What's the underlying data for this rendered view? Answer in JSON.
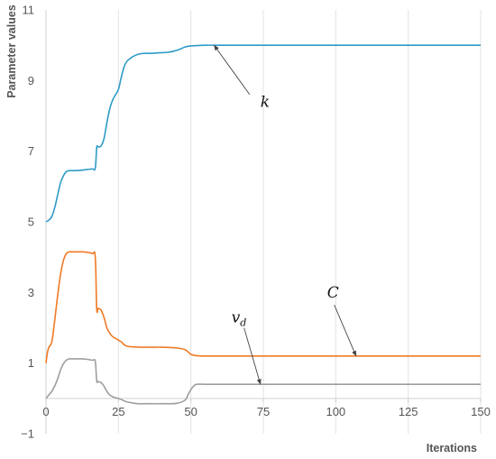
{
  "chart_data": {
    "type": "line",
    "xlabel": "Iterations",
    "ylabel": "Parameter values",
    "xlim": [
      0,
      150
    ],
    "ylim": [
      -1,
      11
    ],
    "x_ticks": [
      0,
      25,
      50,
      75,
      100,
      125,
      150
    ],
    "y_ticks": [
      -1,
      1,
      3,
      5,
      7,
      9,
      11
    ],
    "grid": "vertical",
    "colors": {
      "k": "#2e9bc6",
      "C": "#ef7a26",
      "vd": "#9e9e9e"
    },
    "series": [
      {
        "key": "k",
        "name": "k",
        "x": [
          0,
          1,
          2,
          3,
          4,
          5,
          6,
          7,
          8,
          9,
          10,
          12,
          14,
          16,
          17,
          17.5,
          18,
          19,
          20,
          21,
          22,
          23,
          24,
          25,
          26,
          27,
          28,
          29,
          30,
          32,
          34,
          36,
          38,
          40,
          42,
          44,
          46,
          48,
          50,
          55,
          60,
          80,
          100,
          120,
          150
        ],
        "values": [
          5.0,
          5.05,
          5.15,
          5.4,
          5.75,
          6.1,
          6.3,
          6.42,
          6.45,
          6.45,
          6.45,
          6.46,
          6.48,
          6.5,
          6.52,
          7.1,
          7.12,
          7.15,
          7.35,
          7.8,
          8.2,
          8.45,
          8.6,
          8.75,
          9.1,
          9.4,
          9.55,
          9.62,
          9.68,
          9.75,
          9.77,
          9.77,
          9.78,
          9.79,
          9.8,
          9.83,
          9.88,
          9.95,
          9.98,
          10.0,
          10.0,
          10.0,
          10.0,
          10.0,
          10.0
        ]
      },
      {
        "key": "C",
        "name": "C",
        "x": [
          0,
          0.5,
          1,
          2,
          3,
          4,
          5,
          6,
          7,
          8,
          9,
          10,
          12,
          14,
          16,
          17,
          17.5,
          18,
          19,
          20,
          21,
          22,
          23,
          24,
          25,
          26,
          27,
          28,
          30,
          35,
          40,
          45,
          48,
          50,
          52,
          55,
          60,
          80,
          100,
          120,
          150
        ],
        "values": [
          1.0,
          1.3,
          1.45,
          1.6,
          2.2,
          2.9,
          3.5,
          3.9,
          4.1,
          4.15,
          4.15,
          4.15,
          4.15,
          4.14,
          4.1,
          4.0,
          2.55,
          2.55,
          2.5,
          2.3,
          2.0,
          1.85,
          1.75,
          1.7,
          1.65,
          1.6,
          1.52,
          1.48,
          1.46,
          1.45,
          1.45,
          1.43,
          1.38,
          1.25,
          1.21,
          1.2,
          1.2,
          1.2,
          1.2,
          1.2,
          1.2
        ]
      },
      {
        "key": "vd",
        "name": "v_d",
        "x": [
          0,
          1,
          2,
          3,
          4,
          5,
          6,
          7,
          8,
          9,
          10,
          12,
          14,
          16,
          17,
          17.5,
          18,
          19,
          20,
          21,
          22,
          23,
          24,
          25,
          26,
          27,
          28,
          30,
          32,
          35,
          40,
          45,
          48,
          49,
          50,
          51,
          52,
          55,
          60,
          80,
          100,
          120,
          150
        ],
        "values": [
          0.0,
          0.1,
          0.2,
          0.35,
          0.55,
          0.8,
          0.98,
          1.08,
          1.12,
          1.12,
          1.12,
          1.12,
          1.11,
          1.08,
          1.05,
          0.5,
          0.48,
          0.45,
          0.35,
          0.2,
          0.1,
          0.05,
          0.02,
          0.0,
          -0.03,
          -0.07,
          -0.1,
          -0.13,
          -0.15,
          -0.15,
          -0.15,
          -0.14,
          -0.05,
          0.1,
          0.25,
          0.35,
          0.4,
          0.4,
          0.4,
          0.4,
          0.4,
          0.4,
          0.4
        ]
      }
    ],
    "annotations": [
      {
        "series": "k",
        "label": "k",
        "subscript": "",
        "label_at": [
          74,
          8.25
        ],
        "arrow_to": [
          58,
          10.0
        ]
      },
      {
        "series": "C",
        "label": "C",
        "subscript": "",
        "label_at": [
          97,
          2.85
        ],
        "arrow_to": [
          107,
          1.2
        ]
      },
      {
        "series": "vd",
        "label": "v",
        "subscript": "d",
        "label_at": [
          64,
          2.15
        ],
        "arrow_to": [
          74,
          0.4
        ]
      }
    ]
  }
}
